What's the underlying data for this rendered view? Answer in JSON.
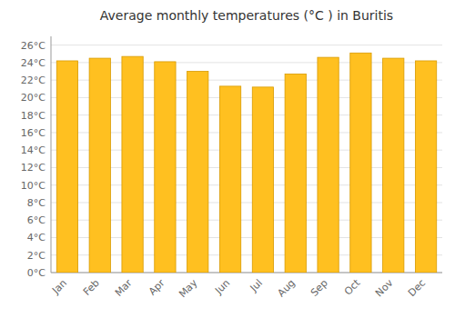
{
  "chart_data": {
    "type": "bar",
    "title": "Average monthly temperatures (°C ) in Buritis",
    "categories": [
      "Jan",
      "Feb",
      "Mar",
      "Apr",
      "May",
      "Jun",
      "Jul",
      "Aug",
      "Sep",
      "Oct",
      "Nov",
      "Dec"
    ],
    "values": [
      24.2,
      24.5,
      24.7,
      24.1,
      23.0,
      21.3,
      21.2,
      22.7,
      24.6,
      25.1,
      24.5,
      24.2
    ],
    "color": "#FFC020",
    "ylim": [
      0,
      27
    ],
    "yticks": [
      {
        "value": 0,
        "label": "0°C"
      },
      {
        "value": 2,
        "label": "2°C"
      },
      {
        "value": 4,
        "label": "4°C"
      },
      {
        "value": 6,
        "label": "6°C"
      },
      {
        "value": 8,
        "label": "8°C"
      },
      {
        "value": 10,
        "label": "10°C"
      },
      {
        "value": 12,
        "label": "12°C"
      },
      {
        "value": 14,
        "label": "14°C"
      },
      {
        "value": 16,
        "label": "16°C"
      },
      {
        "value": 18,
        "label": "18°C"
      },
      {
        "value": 20,
        "label": "20°C"
      },
      {
        "value": 22,
        "label": "22°C"
      },
      {
        "value": 24,
        "label": "24°C"
      },
      {
        "value": 26,
        "label": "26°C"
      }
    ],
    "grid": true
  }
}
